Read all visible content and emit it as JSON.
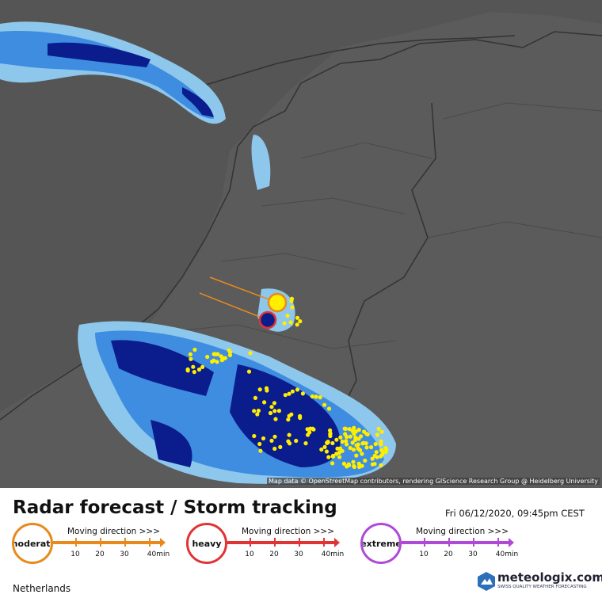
{
  "map": {
    "attribution": "Map data © OpenStreetMap contributors, rendering GIScience Research Group @ Heidelberg University"
  },
  "header": {
    "title": "Radar forecast / Storm tracking",
    "datetime": "Fri 06/12/2020, 09:45pm CEST"
  },
  "legend": [
    {
      "label": "moderate",
      "color": "#e8891c",
      "direction": "Moving direction >>>",
      "ticks": [
        10,
        20,
        30,
        "40min"
      ]
    },
    {
      "label": "heavy",
      "color": "#e03434",
      "direction": "Moving direction >>>",
      "ticks": [
        10,
        20,
        30,
        "40min"
      ]
    },
    {
      "label": "extreme",
      "color": "#b048d8",
      "direction": "Moving direction >>>",
      "ticks": [
        10,
        20,
        30,
        "40min"
      ]
    }
  ],
  "region": "Netherlands",
  "logo": {
    "name": "meteologix.com",
    "tagline": "SWISS QUALITY WEATHER FORECASTING"
  }
}
